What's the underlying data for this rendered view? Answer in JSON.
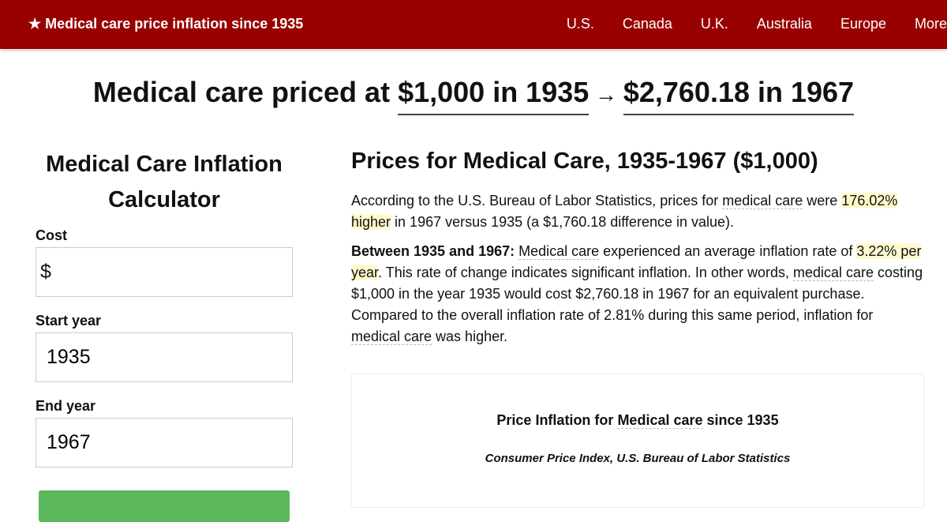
{
  "nav": {
    "brand": "★ Medical care price inflation since 1935",
    "links": [
      "U.S.",
      "Canada",
      "U.K.",
      "Australia",
      "Europe",
      "More"
    ]
  },
  "headline": {
    "prefix": "Medical care priced at ",
    "from": "$1,000 in 1935",
    "arrow": " → ",
    "to": "$2,760.18 in 1967"
  },
  "calculator": {
    "title": "Medical Care Inflation Calculator",
    "cost_label": "Cost",
    "cost_prefix": "$",
    "cost_value": "",
    "start_label": "Start year",
    "start_value": "1935",
    "end_label": "End year",
    "end_value": "1967",
    "button_color": "#5cb85c"
  },
  "main": {
    "title": "Prices for Medical Care, 1935-1967 ($1,000)",
    "p1": {
      "a": "According to the U.S. Bureau of Labor Statistics, prices for ",
      "link": "medical care",
      "b": " were ",
      "hl": "176.02% higher",
      "c": " in 1967 versus 1935 (a $1,760.18 difference in value)."
    },
    "p2": {
      "bold": "Between 1935 and 1967:",
      "link1": "Medical care",
      "a": " experienced an average inflation rate of ",
      "hl": "3.22% per year",
      "b": ". This rate of change indicates significant inflation. In other words, ",
      "link2": "medical care",
      "c": " costing $1,000 in the year 1935 would cost $2,760.18 in 1967 for an equivalent purchase. Compared to the overall inflation rate of 2.81% during this same period, inflation for ",
      "link3": "medical care",
      "d": " was higher."
    }
  },
  "chart": {
    "title_a": "Price Inflation for ",
    "title_link": "Medical care",
    "title_b": " since 1935",
    "subtitle": "Consumer Price Index, U.S. Bureau of Labor Statistics"
  },
  "colors": {
    "nav": "#990000",
    "highlight": "#fffacd"
  }
}
